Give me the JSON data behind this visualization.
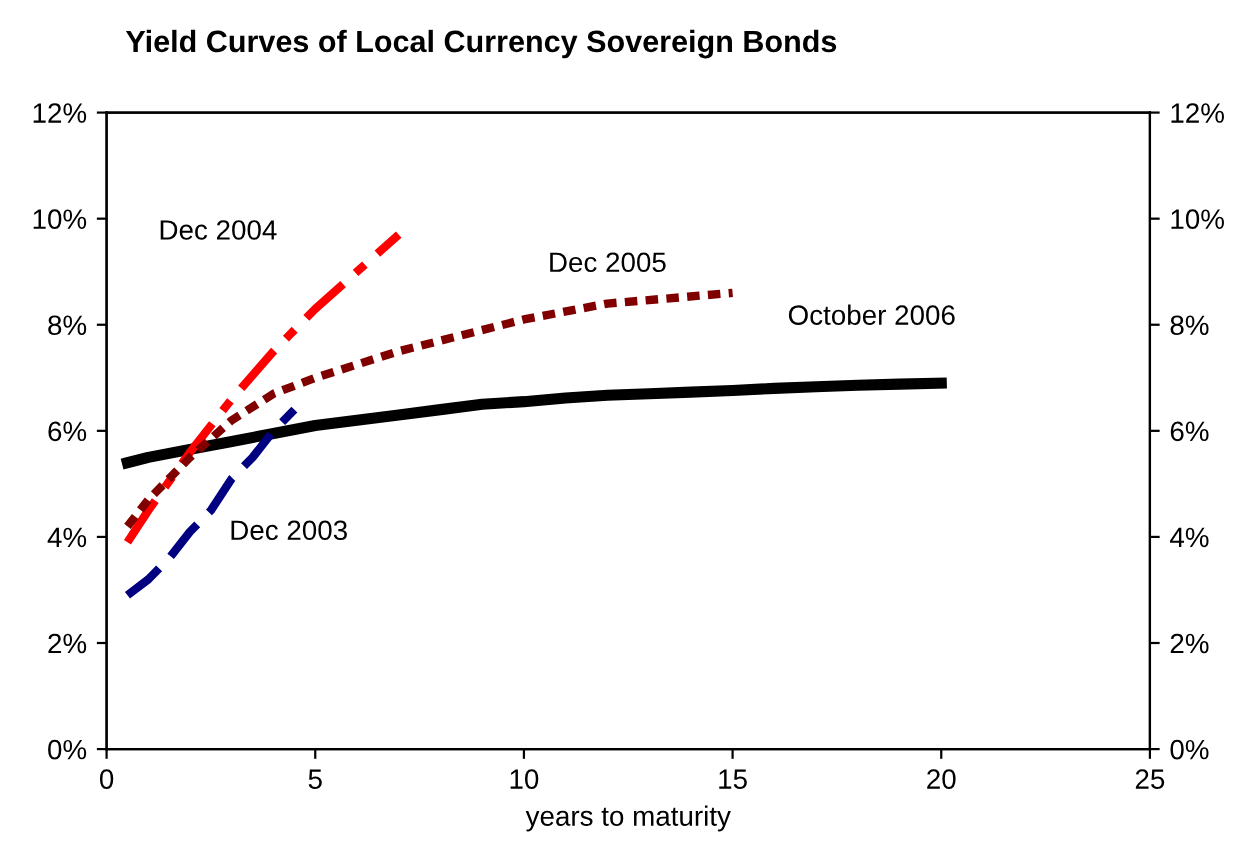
{
  "chart_data": {
    "type": "line",
    "title": "Yield Curves of Local Currency Sovereign Bonds",
    "xlabel": "years to maturity",
    "series": [
      {
        "name": "October 2006",
        "color": "#000000",
        "line_style": "solid",
        "x": [
          0.5,
          1,
          2,
          3,
          4,
          5,
          6,
          7,
          8,
          9,
          10,
          11,
          12,
          13,
          14,
          15,
          16,
          17,
          18,
          19,
          20
        ],
        "values": [
          5.4,
          5.5,
          5.65,
          5.8,
          5.95,
          6.1,
          6.2,
          6.3,
          6.4,
          6.5,
          6.55,
          6.62,
          6.67,
          6.7,
          6.73,
          6.76,
          6.8,
          6.83,
          6.86,
          6.88,
          6.9
        ]
      },
      {
        "name": "Dec 2004",
        "color": "#ff0000",
        "line_style": "dashdot",
        "x": [
          0.5,
          1,
          2,
          3,
          4,
          5,
          6,
          7
        ],
        "values": [
          3.9,
          4.5,
          5.6,
          6.6,
          7.5,
          8.3,
          9.0,
          9.7
        ]
      },
      {
        "name": "Dec 2005",
        "color": "#800000",
        "line_style": "dotted",
        "x": [
          0.5,
          1,
          2,
          3,
          4,
          5,
          7,
          10,
          12,
          15
        ],
        "values": [
          4.2,
          4.7,
          5.5,
          6.2,
          6.7,
          7.0,
          7.5,
          8.1,
          8.4,
          8.6
        ]
      },
      {
        "name": "Dec 2003",
        "color": "#000080",
        "line_style": "dashed",
        "x": [
          0.5,
          1,
          1.5,
          2,
          2.5,
          3,
          3.5,
          4,
          4.5
        ],
        "values": [
          2.9,
          3.2,
          3.6,
          4.1,
          4.5,
          5.1,
          5.5,
          6.0,
          6.4
        ]
      }
    ],
    "xlim": [
      0,
      25
    ],
    "xticks": [
      0,
      5,
      10,
      15,
      20,
      25
    ],
    "ylim": [
      0,
      12
    ],
    "yticks": [
      {
        "value": 0,
        "label": "0%"
      },
      {
        "value": 2,
        "label": "2%"
      },
      {
        "value": 4,
        "label": "4%"
      },
      {
        "value": 6,
        "label": "6%"
      },
      {
        "value": 8,
        "label": "8%"
      },
      {
        "value": 10,
        "label": "10%"
      },
      {
        "value": 12,
        "label": "12%"
      }
    ],
    "y2lim": [
      0,
      12
    ],
    "y2ticks": [
      {
        "value": 0,
        "label": "0%"
      },
      {
        "value": 2,
        "label": "2%"
      },
      {
        "value": 4,
        "label": "4%"
      },
      {
        "value": 6,
        "label": "6%"
      },
      {
        "value": 8,
        "label": "8%"
      },
      {
        "value": 10,
        "label": "10%"
      },
      {
        "value": 12,
        "label": "12%"
      }
    ],
    "grid": false,
    "legend": false
  }
}
